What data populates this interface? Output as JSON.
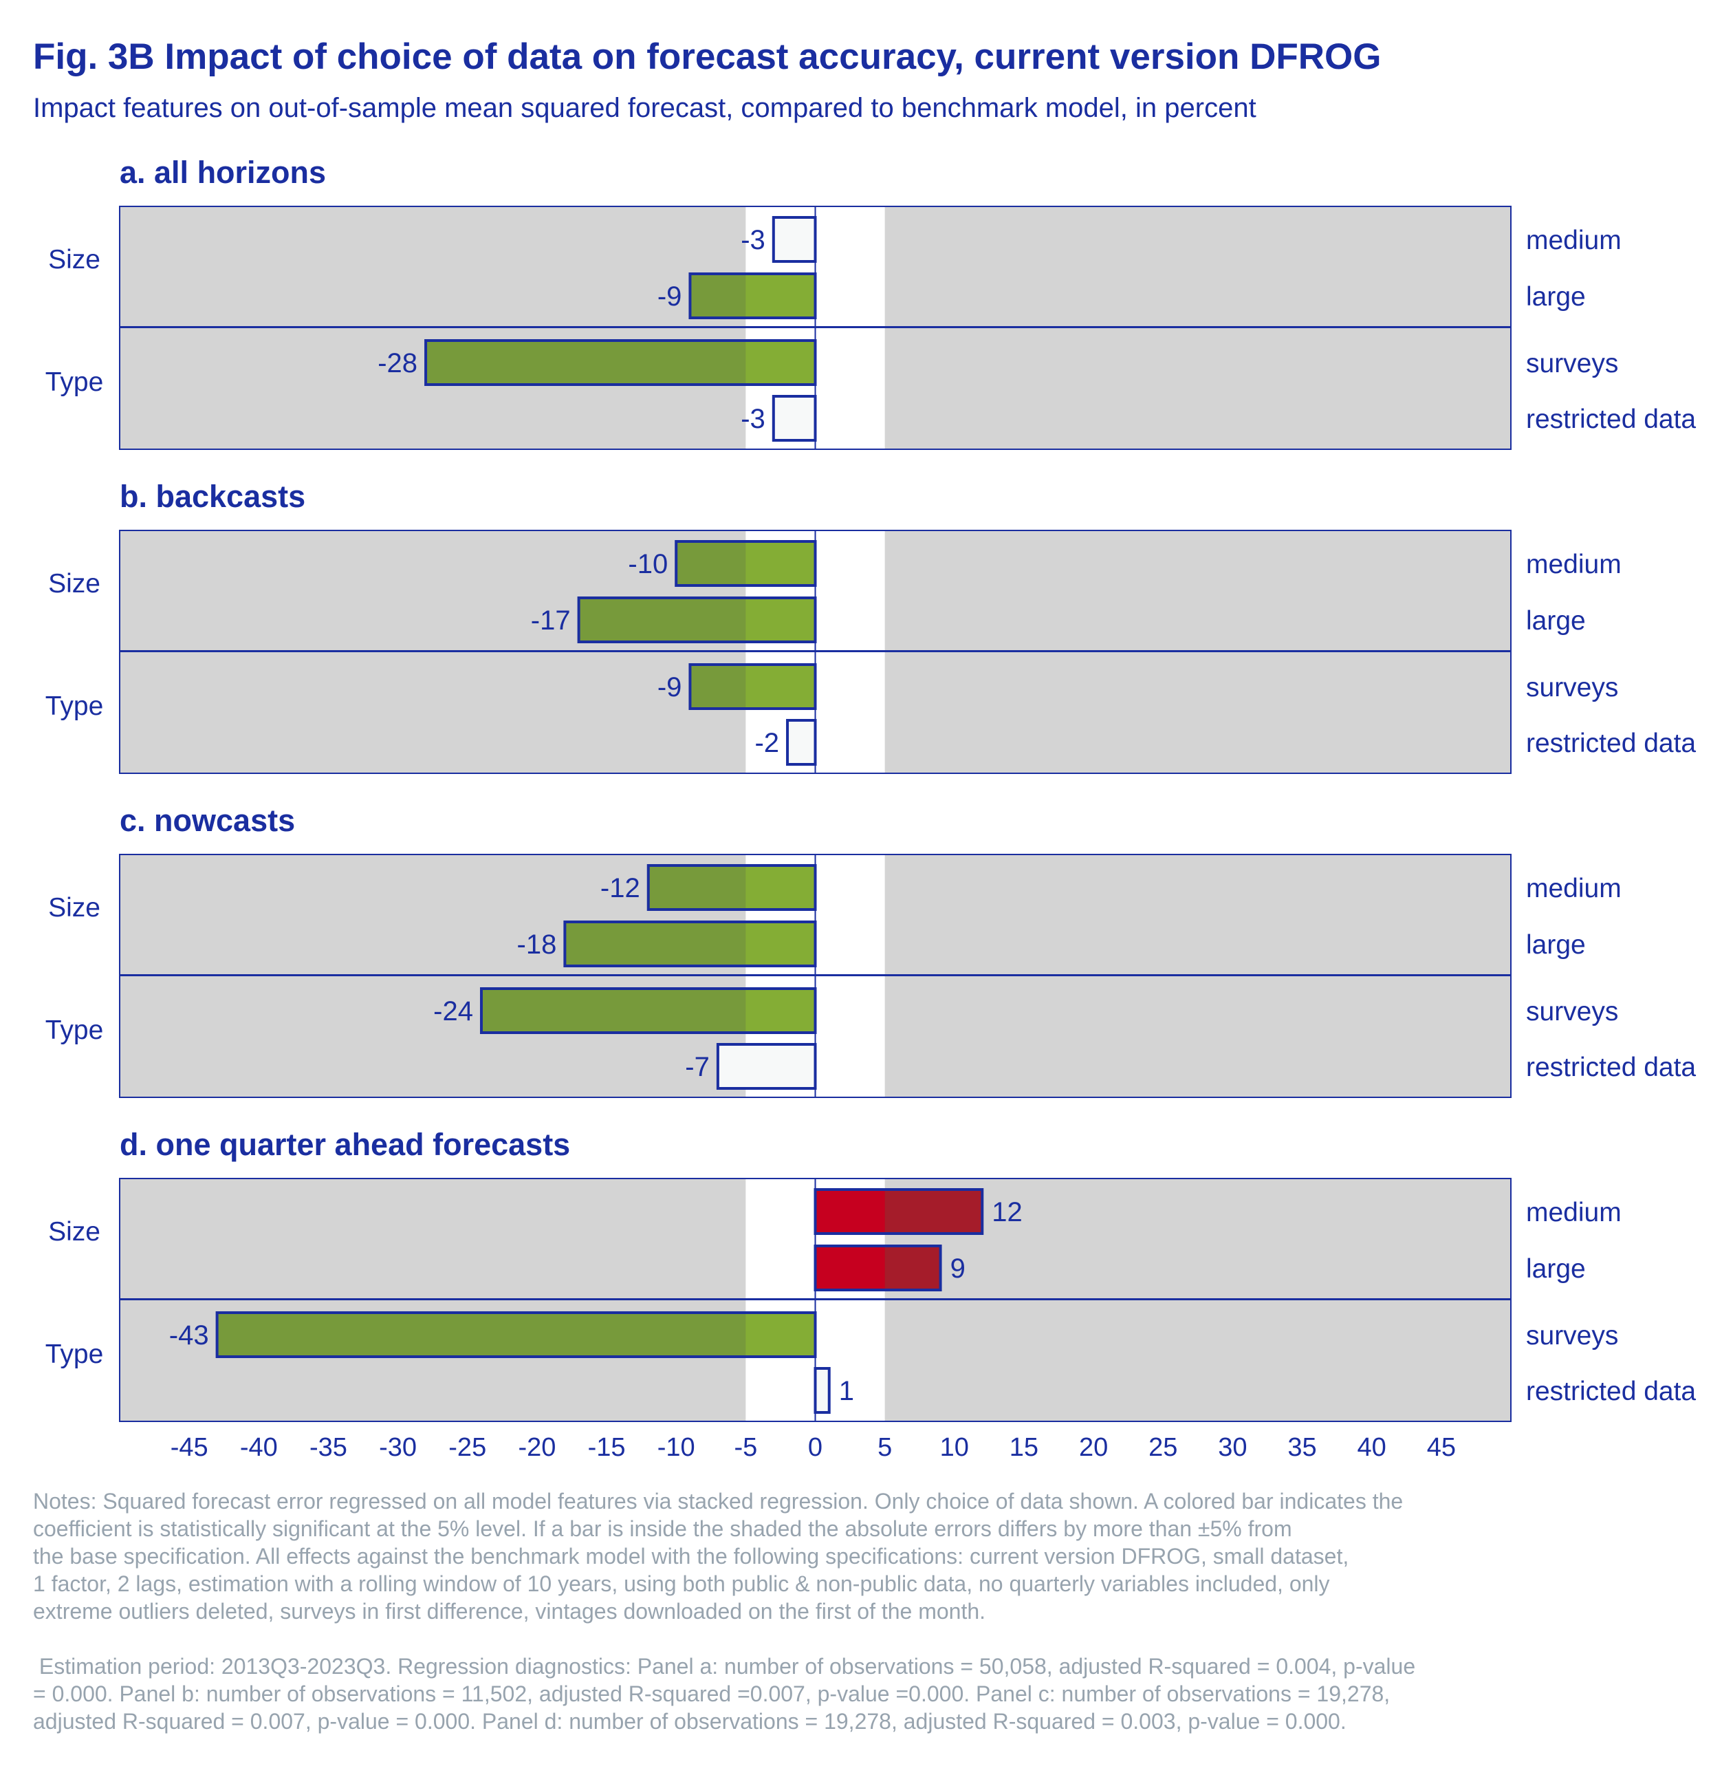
{
  "title": "Fig. 3B Impact of choice of data on forecast accuracy, current version DFROG",
  "subtitle": "Impact features on out-of-sample mean squared forecast, compared to benchmark model, in percent",
  "chart_data": {
    "type": "bar",
    "orientation": "horizontal",
    "xlim": [
      -50,
      50
    ],
    "xticks": [
      -45,
      -40,
      -35,
      -30,
      -25,
      -20,
      -15,
      -10,
      -5,
      0,
      5,
      10,
      15,
      20,
      25,
      30,
      35,
      40,
      45
    ],
    "shaded_band": [
      -5,
      5
    ],
    "groups": [
      "Size",
      "Type"
    ],
    "categories": [
      "medium",
      "large",
      "surveys",
      "restricted data"
    ],
    "colors": {
      "negative_significant": "#779a3b",
      "negative_in_band": "#84ad35",
      "positive_significant": "#a51c2a",
      "positive_in_band": "#c6001f",
      "not_significant": "#f7f9f9",
      "bar_outline": "#1a2ea0",
      "background": "#d4d4d4",
      "band": "#ffffff",
      "text": "#1a2ea0"
    },
    "panels": [
      {
        "title": "a. all horizons",
        "values": [
          -3,
          -9,
          -28,
          -3
        ],
        "labels": [
          "-3",
          "-9",
          "-28",
          "-3"
        ],
        "significant": [
          false,
          true,
          true,
          false
        ]
      },
      {
        "title": "b. backcasts",
        "values": [
          -10,
          -17,
          -9,
          -2
        ],
        "labels": [
          "-10",
          "-17",
          "-9",
          "-2"
        ],
        "significant": [
          true,
          true,
          true,
          false
        ]
      },
      {
        "title": "c. nowcasts",
        "values": [
          -12,
          -18,
          -24,
          -7
        ],
        "labels": [
          "-12",
          "-18",
          "-24",
          "-7"
        ],
        "significant": [
          true,
          true,
          true,
          false
        ]
      },
      {
        "title": "d. one quarter ahead forecasts",
        "values": [
          12,
          9,
          -43,
          1
        ],
        "labels": [
          "12",
          "9",
          "-43",
          "1"
        ],
        "significant": [
          true,
          true,
          true,
          false
        ]
      }
    ]
  },
  "notes": {
    "lines": [
      "Notes: Squared forecast error regressed on all model features via stacked regression. Only choice of data shown. A colored bar indicates the",
      "coefficient is statistically significant at the 5% level. If a bar is inside the shaded the absolute errors differs by more than ±5% from",
      "the base specification. All effects against the benchmark model with the following specifications: current version DFROG, small dataset,",
      "1 factor, 2 lags, estimation with a rolling window of 10 years, using both public & non-public data, no quarterly variables included, only",
      "extreme outliers deleted, surveys in first difference, vintages downloaded on the first of the month."
    ],
    "estimation_lines": [
      " Estimation period: 2013Q3-2023Q3. Regression diagnostics: Panel a: number of observations = 50,058, adjusted R-squared = 0.004, p-value",
      "= 0.000. Panel b: number of observations = 11,502, adjusted R-squared =0.007, p-value =0.000. Panel c: number of observations = 19,278,",
      "adjusted R-squared = 0.007, p-value = 0.000. Panel d: number of observations = 19,278, adjusted R-squared = 0.003, p-value = 0.000."
    ]
  }
}
